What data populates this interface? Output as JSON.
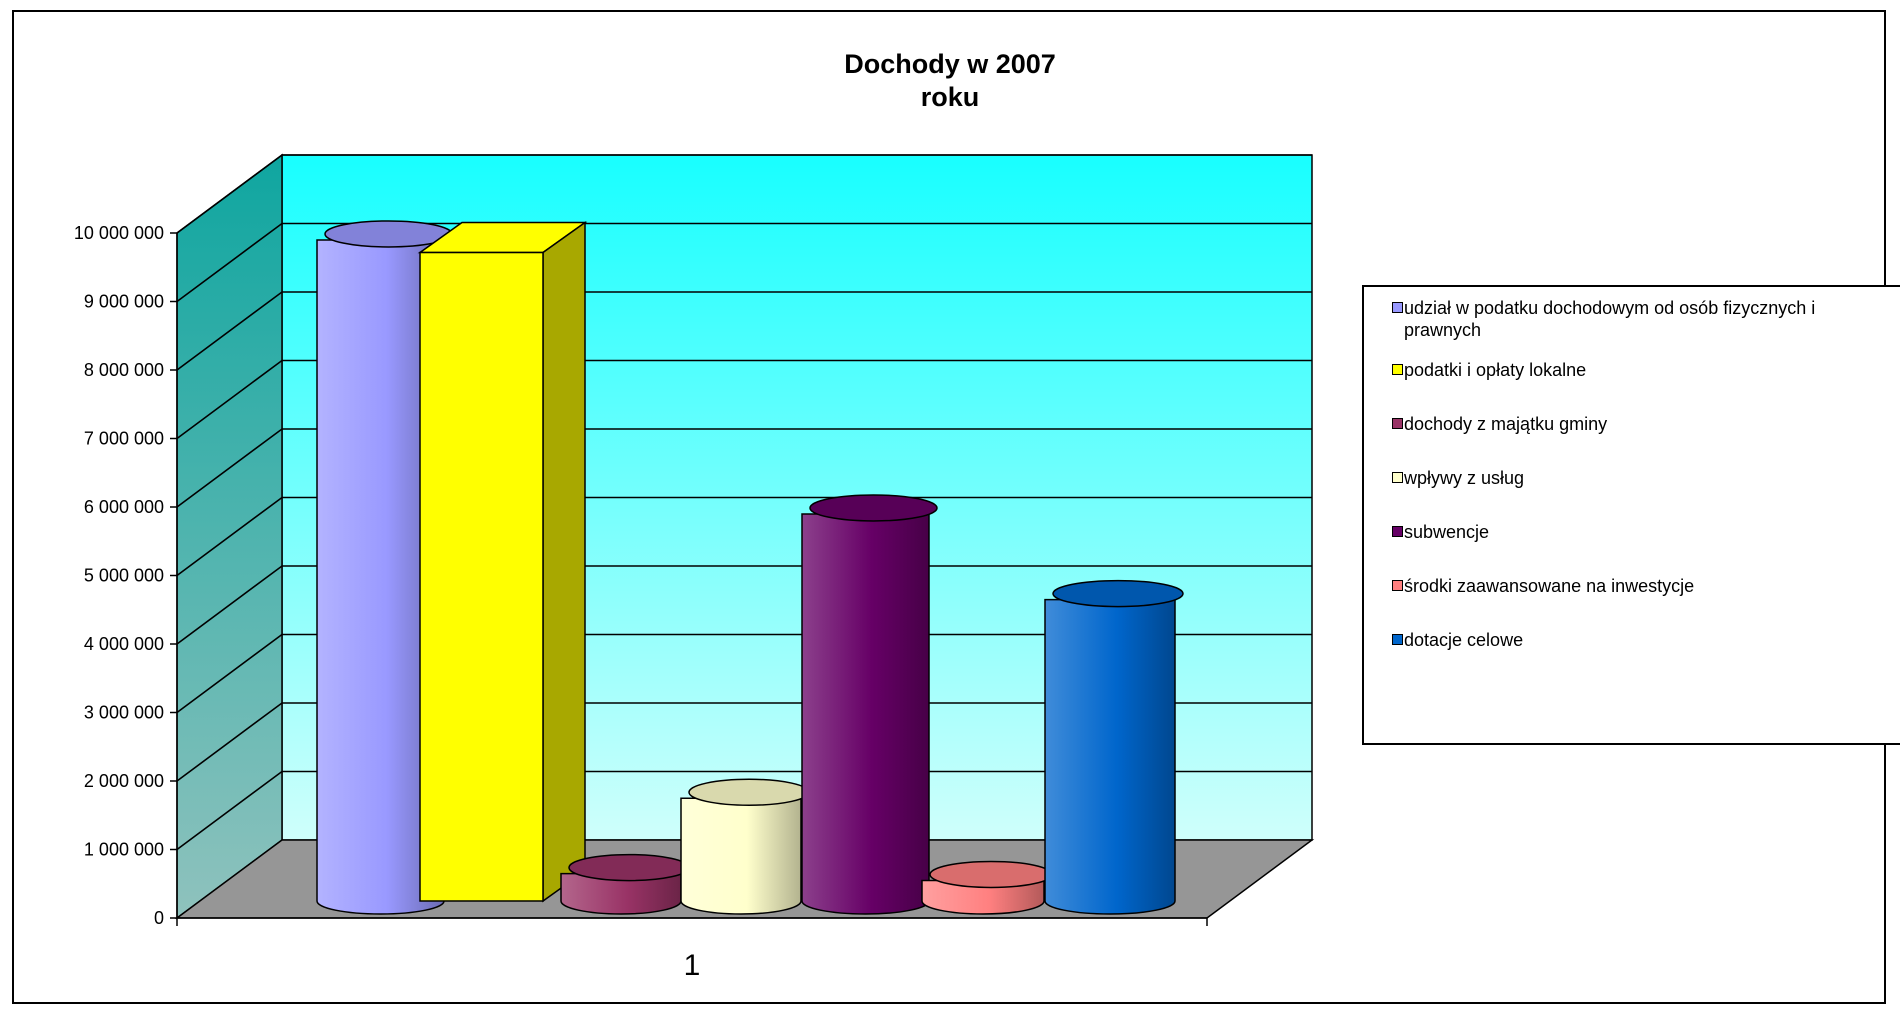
{
  "chart_data": {
    "type": "bar",
    "title_lines": [
      "Dochody w 2007",
      "roku"
    ],
    "categories": [
      "1"
    ],
    "ylim": [
      0,
      10000000
    ],
    "yticks": [
      0,
      1000000,
      2000000,
      3000000,
      4000000,
      5000000,
      6000000,
      7000000,
      8000000,
      9000000,
      10000000
    ],
    "ytick_labels": [
      "0",
      "1 000 000",
      "2 000 000",
      "3 000 000",
      "4 000 000",
      "5 000 000",
      "6 000 000",
      "7 000 000",
      "8 000 000",
      "9 000 000",
      "10 000 000"
    ],
    "grid": true,
    "legend_position": "right",
    "series": [
      {
        "name": "udział w podatku dochodowym od osób fizycznych i prawnych",
        "values": [
          9650000
        ],
        "color": "#9999ff",
        "shape": "cylinder"
      },
      {
        "name": "podatki i opłaty lokalne",
        "values": [
          9350000
        ],
        "color": "#ffff00",
        "shape": "box"
      },
      {
        "name": "dochody z majątku gminy",
        "values": [
          400000
        ],
        "color": "#993366",
        "shape": "cylinder"
      },
      {
        "name": "wpływy z usług",
        "values": [
          1500000
        ],
        "color": "#ffffcc",
        "shape": "cylinder"
      },
      {
        "name": "subwencje",
        "values": [
          5650000
        ],
        "color": "#660066",
        "shape": "cylinder"
      },
      {
        "name": "środki zaawansowane na inwestycje",
        "values": [
          300000
        ],
        "color": "#ff8080",
        "shape": "cylinder"
      },
      {
        "name": "dotacje celowe",
        "values": [
          4400000
        ],
        "color": "#0066cc",
        "shape": "cylinder"
      }
    ],
    "colors": {
      "back_wall_top": "#18ffff",
      "back_wall_bottom": "#cffffb",
      "side_wall_top": "#0fa6a0",
      "side_wall_bottom": "#8fc2bd",
      "floor": "#969696"
    }
  }
}
